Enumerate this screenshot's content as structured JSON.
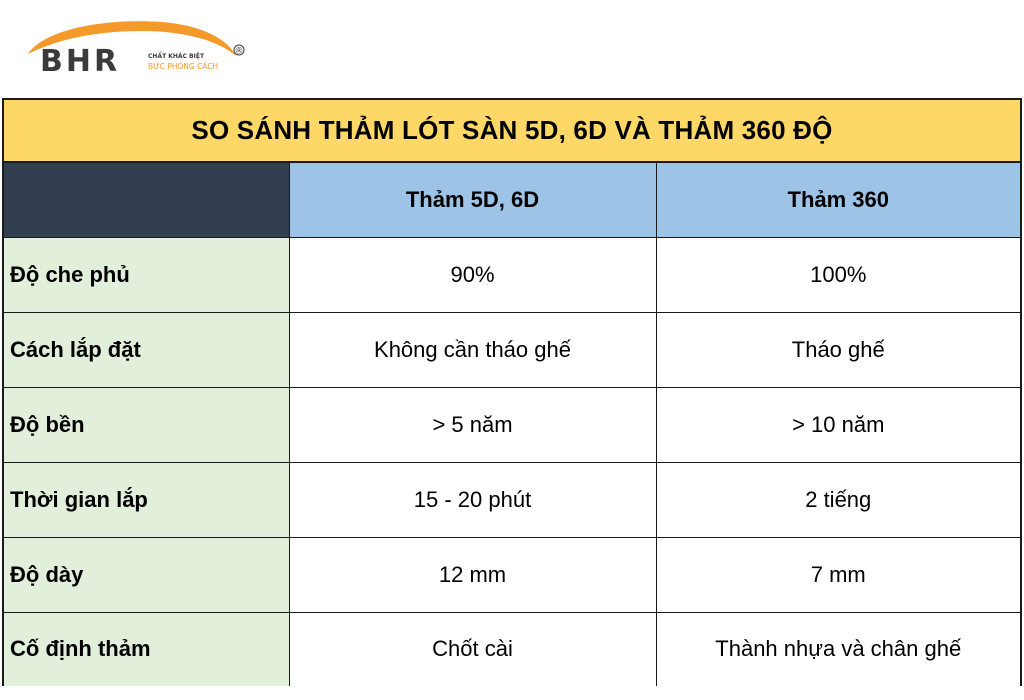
{
  "brand": {
    "logo_text": "BHR",
    "tagline_top": "CHẤT KHÁC BIỆT",
    "tagline_bottom": "BỨC PHONG CÁCH",
    "registered_mark": "®",
    "colors": {
      "orange": "#f39a2b",
      "dark": "#3b3b3b"
    }
  },
  "table": {
    "title": "SO SÁNH THẢM LÓT SÀN 5D, 6D VÀ THẢM 360 ĐỘ",
    "columns": [
      "Thảm 5D, 6D",
      "Thảm 360"
    ],
    "rows": [
      {
        "label": "Độ che phủ",
        "values": [
          "90%",
          "100%"
        ]
      },
      {
        "label": "Cách lắp đặt",
        "values": [
          "Không cần tháo ghế",
          "Tháo ghế"
        ]
      },
      {
        "label": "Độ bền",
        "values": [
          "> 5 năm",
          "> 10 năm"
        ]
      },
      {
        "label": "Thời gian lắp",
        "values": [
          "15 - 20 phút",
          "2 tiếng"
        ]
      },
      {
        "label": "Độ dày",
        "values": [
          "12 mm",
          "7 mm"
        ]
      },
      {
        "label": "Cố định thảm",
        "values": [
          "Chốt cài",
          "Thành nhựa và chân ghế"
        ]
      }
    ],
    "colors": {
      "title_bg": "#fdd866",
      "corner_bg": "#333f50",
      "header_bg": "#9dc3e6",
      "label_bg": "#e2efda"
    }
  }
}
